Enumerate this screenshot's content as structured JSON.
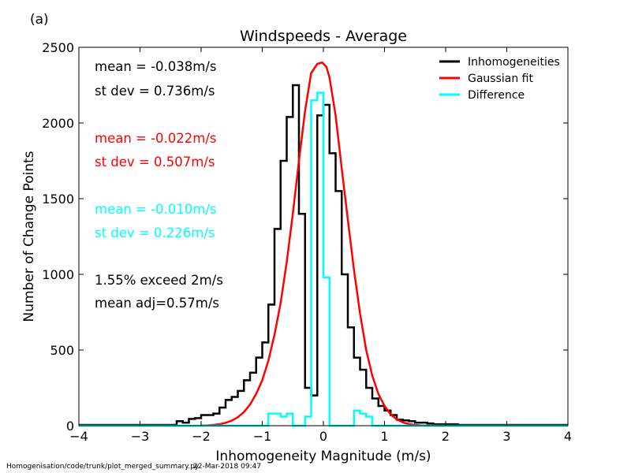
{
  "panel_label": "(a)",
  "footer": {
    "path": "Homogenisation/code/trunk/plot_merged_summary.py",
    "timestamp": "22-Mar-2018 09:47"
  },
  "annotations": [
    {
      "text": "mean = -0.038m/s",
      "color": "#000000"
    },
    {
      "text": "st dev =  0.736m/s",
      "color": "#000000"
    },
    {
      "text": "mean = -0.022m/s",
      "color": "#ff0000"
    },
    {
      "text": "st dev =  0.507m/s",
      "color": "#ff0000"
    },
    {
      "text": "mean = -0.010m/s",
      "color": "#00ffff"
    },
    {
      "text": "st dev =  0.226m/s",
      "color": "#00ffff"
    },
    {
      "text": "1.55% exceed 2m/s",
      "color": "#000000"
    },
    {
      "text": "mean adj=0.57m/s",
      "color": "#000000"
    }
  ],
  "chart_data": {
    "type": "line",
    "title": "Windspeeds - Average",
    "xlabel": "Inhomogeneity Magnitude (m/s)",
    "ylabel": "Number of Change Points",
    "xlim": [
      -4,
      4
    ],
    "ylim": [
      0,
      2500
    ],
    "xticks": [
      -4,
      -3,
      -2,
      -1,
      0,
      1,
      2,
      3,
      4
    ],
    "xtick_labels": [
      "−4",
      "−3",
      "−2",
      "−1",
      "0",
      "1",
      "2",
      "3",
      "4"
    ],
    "yticks": [
      0,
      500,
      1000,
      1500,
      2000,
      2500
    ],
    "ytick_labels": [
      "0",
      "500",
      "1000",
      "1500",
      "2000",
      "2500"
    ],
    "grid": false,
    "legend_position": "top-right",
    "bin_edges": [
      -4.0,
      -3.9,
      -3.8,
      -3.7,
      -3.6,
      -3.5,
      -3.4,
      -3.3,
      -3.2,
      -3.1,
      -3.0,
      -2.9,
      -2.8,
      -2.7,
      -2.6,
      -2.5,
      -2.4,
      -2.3,
      -2.2,
      -2.1,
      -2.0,
      -1.9,
      -1.8,
      -1.7,
      -1.6,
      -1.5,
      -1.4,
      -1.3,
      -1.2,
      -1.1,
      -1.0,
      -0.9,
      -0.8,
      -0.7,
      -0.6,
      -0.5,
      -0.4,
      -0.3,
      -0.2,
      -0.1,
      0.0,
      0.1,
      0.2,
      0.3,
      0.4,
      0.5,
      0.6,
      0.7,
      0.8,
      0.9,
      1.0,
      1.1,
      1.2,
      1.3,
      1.4,
      1.5,
      1.6,
      1.7,
      1.8,
      1.9,
      2.0,
      2.1,
      2.2,
      2.3,
      2.4,
      2.5,
      2.6,
      2.7,
      2.8,
      2.9,
      3.0,
      3.1,
      3.2,
      3.3,
      3.4,
      3.5,
      3.6,
      3.7,
      3.8,
      3.9,
      4.0
    ],
    "series": [
      {
        "name": "Inhomogeneities",
        "color": "#000000",
        "style": "steps",
        "values": [
          5,
          5,
          5,
          5,
          5,
          5,
          5,
          5,
          5,
          5,
          5,
          5,
          5,
          5,
          5,
          5,
          30,
          20,
          45,
          50,
          70,
          70,
          80,
          120,
          170,
          190,
          230,
          300,
          350,
          450,
          550,
          800,
          1300,
          1750,
          2040,
          2250,
          1400,
          250,
          200,
          2050,
          2120,
          1800,
          1550,
          1000,
          650,
          450,
          370,
          250,
          180,
          130,
          100,
          70,
          40,
          35,
          30,
          20,
          20,
          15,
          10,
          10,
          10,
          10,
          5,
          5,
          5,
          5,
          5,
          5,
          5,
          5,
          5,
          5,
          5,
          5,
          5,
          5,
          5,
          5,
          5,
          5
        ]
      },
      {
        "name": "Gaussian fit",
        "color": "#ff0000",
        "style": "line",
        "x": [
          -2.0,
          -1.9,
          -1.8,
          -1.7,
          -1.6,
          -1.5,
          -1.4,
          -1.3,
          -1.2,
          -1.1,
          -1.0,
          -0.9,
          -0.8,
          -0.7,
          -0.6,
          -0.5,
          -0.4,
          -0.3,
          -0.2,
          -0.1,
          -0.02,
          0.05,
          0.1,
          0.2,
          0.3,
          0.4,
          0.5,
          0.6,
          0.7,
          0.8,
          0.9,
          1.0,
          1.1,
          1.2,
          1.3,
          1.4,
          1.5,
          1.6,
          1.7,
          1.8,
          1.9,
          2.0
        ],
        "y": [
          1,
          2,
          5,
          10,
          19,
          33,
          56,
          90,
          140,
          210,
          300,
          430,
          600,
          810,
          1080,
          1400,
          1750,
          2080,
          2330,
          2390,
          2400,
          2370,
          2300,
          2050,
          1700,
          1360,
          1030,
          740,
          500,
          330,
          210,
          130,
          75,
          42,
          22,
          11,
          5,
          2,
          1,
          1,
          0,
          0
        ]
      },
      {
        "name": "Difference",
        "color": "#00ffff",
        "style": "steps",
        "values": [
          0,
          0,
          0,
          0,
          0,
          0,
          0,
          0,
          0,
          0,
          0,
          0,
          0,
          0,
          0,
          0,
          0,
          0,
          0,
          0,
          0,
          0,
          0,
          0,
          0,
          0,
          0,
          0,
          0,
          0,
          0,
          80,
          80,
          60,
          80,
          0,
          0,
          60,
          2150,
          2200,
          980,
          0,
          0,
          0,
          0,
          100,
          80,
          60,
          0,
          0,
          0,
          0,
          0,
          0,
          0,
          0,
          0,
          0,
          0,
          0,
          0,
          0,
          0,
          0,
          0,
          0,
          0,
          0,
          0,
          0,
          0,
          0,
          0,
          0,
          0,
          0,
          0,
          0,
          0,
          0
        ]
      }
    ]
  }
}
